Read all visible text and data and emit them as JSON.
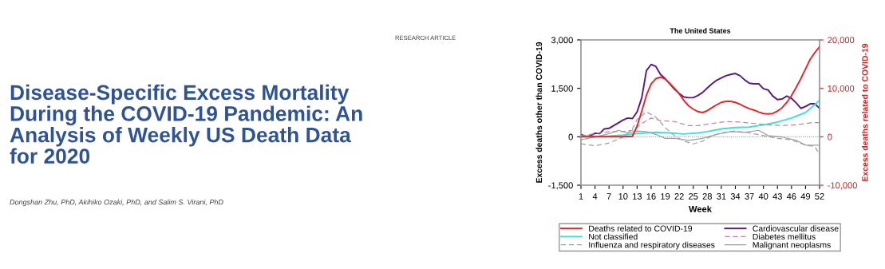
{
  "chart_data": {
    "type": "line",
    "title": "The United States",
    "xlabel": "Week",
    "ylabel": "Excess deaths other than COVID-19",
    "y2label": "Excess deaths related to COVID-19",
    "annotations": [
      "RESEARCH ARTICLE",
      "Disease-Specific Excess Mortality\nDuring the COVID-19 Pandemic: An\nAnalysis of Weekly US Death Data\nfor 2020",
      "Dongshan Zhu, PhD, Akihiko Ozaki, PhD, and Salim S. Virani, PhD"
    ],
    "xlim": [
      1,
      52
    ],
    "xticks": [
      1,
      4,
      7,
      10,
      13,
      16,
      19,
      22,
      25,
      28,
      31,
      34,
      37,
      40,
      43,
      46,
      49,
      52
    ],
    "ylim": [
      -1500,
      3000
    ],
    "yticks": [
      {
        "value": -1500,
        "label": "-1,500"
      },
      0,
      {
        "value": 1500,
        "label": "1,500"
      },
      {
        "value": 3000,
        "label": "3,000"
      }
    ],
    "y2lim": [
      -10000,
      20000
    ],
    "y2ticks": [
      {
        "value": -10000,
        "label": "-10,000"
      },
      0,
      {
        "value": 10000,
        "label": "10,000"
      },
      {
        "value": 20000,
        "label": "20,000"
      }
    ],
    "ref_lines": [
      {
        "axis": "y",
        "value": 0,
        "color": "#6080b0",
        "line_style": "dotted"
      }
    ],
    "legend": "bottom",
    "grid": false,
    "marker": "none",
    "series": [
      {
        "name": "Deaths related to COVID-19",
        "color": "#e02828",
        "axis": "y2",
        "line_style": "solid",
        "x": [
          1,
          4,
          7,
          10,
          12,
          13,
          14,
          15,
          16,
          17,
          18,
          19,
          20,
          21,
          22,
          23,
          24,
          25,
          26,
          27,
          28,
          29,
          30,
          31,
          32,
          33,
          34,
          35,
          36,
          37,
          38,
          39,
          40,
          41,
          42,
          43,
          44,
          45,
          46,
          47,
          48,
          49,
          50,
          51,
          52
        ],
        "values": [
          0,
          0,
          0,
          0,
          100,
          2200,
          5300,
          8600,
          10900,
          12000,
          12300,
          11900,
          11000,
          10000,
          8900,
          7500,
          6400,
          5700,
          5200,
          5000,
          5400,
          6000,
          6600,
          7100,
          7300,
          7300,
          7100,
          6700,
          6200,
          5800,
          5500,
          5100,
          4800,
          4700,
          4800,
          5300,
          6000,
          7100,
          8500,
          10200,
          12000,
          14000,
          16000,
          17400,
          18600
        ]
      },
      {
        "name": "Cardiovascular disease",
        "color": "#5a1a78",
        "line_style": "solid",
        "x": [
          1,
          2,
          3,
          4,
          5,
          6,
          7,
          8,
          9,
          10,
          11,
          12,
          13,
          14,
          15,
          16,
          17,
          18,
          19,
          20,
          21,
          22,
          23,
          24,
          25,
          26,
          27,
          28,
          29,
          30,
          31,
          32,
          33,
          34,
          35,
          36,
          37,
          38,
          39,
          40,
          41,
          42,
          43,
          44,
          45,
          46,
          47,
          48,
          49,
          50,
          51,
          52
        ],
        "values": [
          75,
          10,
          30,
          110,
          100,
          245,
          260,
          345,
          430,
          520,
          580,
          565,
          770,
          1210,
          2050,
          2240,
          2180,
          1930,
          1800,
          1640,
          1470,
          1340,
          1230,
          1210,
          1210,
          1280,
          1370,
          1510,
          1640,
          1750,
          1820,
          1890,
          1930,
          1960,
          1890,
          1760,
          1660,
          1640,
          1640,
          1490,
          1450,
          1260,
          1150,
          1170,
          1260,
          1190,
          1050,
          880,
          940,
          1020,
          1020,
          880
        ]
      },
      {
        "name": "Not classified",
        "color": "#3ee0d8",
        "line_style": "solid",
        "x": [
          1,
          4,
          7,
          10,
          13,
          15,
          17,
          20,
          23,
          26,
          28,
          31,
          34,
          37,
          40,
          43,
          46,
          49,
          51,
          52
        ],
        "values": [
          0,
          10,
          20,
          50,
          100,
          120,
          140,
          120,
          85,
          120,
          160,
          245,
          285,
          300,
          370,
          455,
          580,
          750,
          1000,
          1130
        ]
      },
      {
        "name": "Diabetes mellitus",
        "color": "#c080a8",
        "line_style": "dashed",
        "x": [
          1,
          4,
          7,
          10,
          12,
          14,
          16,
          18,
          21,
          24,
          26,
          29,
          32,
          35,
          38,
          41,
          44,
          47,
          50,
          52
        ],
        "values": [
          30,
          100,
          160,
          160,
          200,
          410,
          580,
          500,
          470,
          345,
          345,
          410,
          470,
          455,
          410,
          370,
          345,
          370,
          430,
          440
        ]
      },
      {
        "name": "Influenza and respiratory diseases",
        "color": "#a0a0a8",
        "line_style": "dashed",
        "x": [
          1,
          4,
          7,
          10,
          12,
          13,
          15,
          17,
          19,
          21,
          23,
          25,
          27,
          29,
          31,
          34,
          37,
          40,
          43,
          46,
          49,
          51,
          52
        ],
        "values": [
          -220,
          -280,
          -195,
          -10,
          245,
          540,
          770,
          610,
          285,
          35,
          -135,
          -220,
          -135,
          35,
          120,
          180,
          120,
          35,
          -50,
          -95,
          -260,
          -300,
          -560
        ]
      },
      {
        "name": "Malignant neoplasms",
        "color": "#a0a0a0",
        "line_style": "solid",
        "x": [
          1,
          4,
          7,
          9,
          11,
          13,
          15,
          17,
          19,
          21,
          24,
          27,
          30,
          33,
          36,
          39,
          41,
          44,
          47,
          49,
          52
        ],
        "values": [
          -95,
          -10,
          100,
          200,
          120,
          180,
          160,
          75,
          -50,
          -50,
          -110,
          -50,
          75,
          160,
          135,
          200,
          35,
          -10,
          -110,
          -260,
          -260
        ]
      }
    ]
  }
}
